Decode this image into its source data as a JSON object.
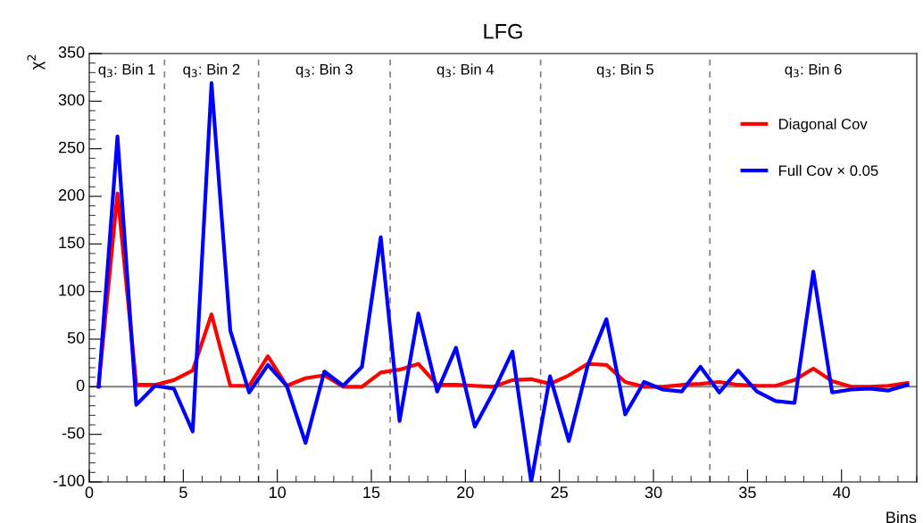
{
  "chart_data": {
    "type": "line",
    "title": "LFG",
    "xlabel": "Bins",
    "ylabel": "χ$^{2}$",
    "x": [
      0.5,
      1.5,
      2.5,
      3.5,
      4.5,
      5.5,
      6.5,
      7.5,
      8.5,
      9.5,
      10.5,
      11.5,
      12.5,
      13.5,
      14.5,
      15.5,
      16.5,
      17.5,
      18.5,
      19.5,
      20.5,
      21.5,
      22.5,
      23.5,
      24.5,
      25.5,
      26.5,
      27.5,
      28.5,
      29.5,
      30.5,
      31.5,
      32.5,
      33.5,
      34.5,
      35.5,
      36.5,
      37.5,
      38.5,
      39.5,
      40.5,
      41.5,
      42.5,
      43.5
    ],
    "series": [
      {
        "name": "Diagonal Cov",
        "color": "#ff0000",
        "values": [
          2,
          203,
          2,
          2,
          7,
          17,
          76,
          1,
          1,
          32,
          1,
          9,
          12,
          0,
          0,
          15,
          18,
          24,
          2,
          2,
          1,
          0,
          7,
          8,
          3,
          12,
          24,
          23,
          5,
          0,
          0,
          2,
          3,
          5,
          2,
          1,
          1,
          7,
          19,
          6,
          0,
          0,
          1,
          4
        ]
      },
      {
        "name": "Full Cov × 0.05",
        "color": "#0000ff",
        "values": [
          0,
          263,
          -19,
          1,
          -2,
          -47,
          319,
          59,
          -6,
          23,
          1,
          -59,
          16,
          1,
          21,
          157,
          -36,
          77,
          -5,
          41,
          -42,
          -5,
          37,
          -100,
          11,
          -57,
          22,
          71,
          -29,
          5,
          -3,
          -5,
          21,
          -6,
          17,
          -5,
          -15,
          -17,
          121,
          -6,
          -3,
          -2,
          -4,
          2
        ]
      }
    ],
    "xlim": [
      0,
      44
    ],
    "xticks": [
      0,
      5,
      10,
      15,
      20,
      25,
      30,
      35,
      40
    ],
    "ylim": [
      -100,
      350
    ],
    "yticks": [
      -100,
      -50,
      0,
      50,
      100,
      150,
      200,
      250,
      300,
      350
    ],
    "ref_lines": [
      {
        "axis": "y",
        "value": 0,
        "color": "#808080",
        "line_style": "solid"
      },
      {
        "axis": "x",
        "value": 4,
        "color": "#808080",
        "line_style": "dashed"
      },
      {
        "axis": "x",
        "value": 9,
        "color": "#808080",
        "line_style": "dashed"
      },
      {
        "axis": "x",
        "value": 16,
        "color": "#808080",
        "line_style": "dashed"
      },
      {
        "axis": "x",
        "value": 24,
        "color": "#808080",
        "line_style": "dashed"
      },
      {
        "axis": "x",
        "value": 33,
        "color": "#808080",
        "line_style": "dashed"
      }
    ],
    "annotations": [
      "q$_{3}$: Bin 1",
      "q$_{3}$: Bin 2",
      "q$_{3}$: Bin 3",
      "q$_{3}$: Bin 4",
      "q$_{3}$: Bin 5",
      "q$_{3}$: Bin 6"
    ],
    "legend": "top right",
    "grid": false,
    "marker": "none",
    "line_style": "solid"
  }
}
